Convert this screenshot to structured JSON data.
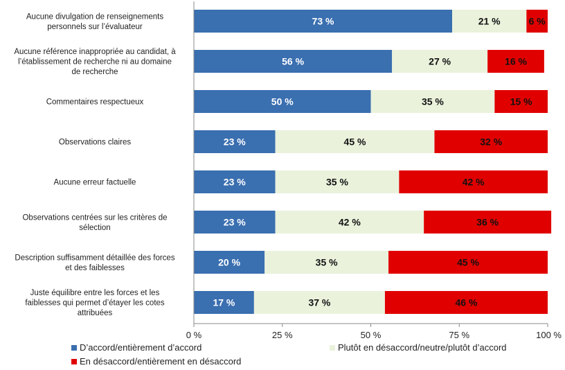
{
  "chart_data": {
    "type": "bar",
    "orientation": "horizontal",
    "stacked": true,
    "categories": [
      [
        "Aucune divulgation de renseignements",
        "personnels sur l’évaluateur"
      ],
      [
        "Aucune référence inappropriée au candidat, à",
        "l’établissement de recherche ni au domaine",
        "de recherche"
      ],
      [
        "Commentaires respectueux"
      ],
      [
        "Observations claires"
      ],
      [
        "Aucune erreur factuelle"
      ],
      [
        "Observations centrées sur les critères de",
        "sélection"
      ],
      [
        "Description suffisamment détaillée des forces",
        "et des faiblesses"
      ],
      [
        "Juste équilibre entre les forces et les",
        "faiblesses qui permet d’étayer les cotes",
        "attribuées"
      ]
    ],
    "series": [
      {
        "name": "D’accord/entièrement d’accord",
        "color": "#3a6fb0",
        "label_color": "#ffffff",
        "values": [
          73,
          56,
          50,
          23,
          23,
          23,
          20,
          17
        ]
      },
      {
        "name": "Plutôt en désaccord/neutre/plutôt d’accord",
        "color": "#eaf2dc",
        "label_color": "#111111",
        "values": [
          21,
          27,
          35,
          45,
          35,
          42,
          35,
          37
        ]
      },
      {
        "name": "En désaccord/entièrement en désaccord",
        "color": "#e00000",
        "label_color": "#111111",
        "values": [
          6,
          16,
          15,
          32,
          42,
          36,
          45,
          46
        ]
      }
    ],
    "value_suffix": " %",
    "xlim": [
      0,
      100
    ],
    "xticks": [
      0,
      25,
      50,
      75,
      100
    ],
    "xtick_labels": [
      "0 %",
      "25 %",
      "50 %",
      "75 %",
      "100 %"
    ],
    "title": "",
    "xlabel": "",
    "ylabel": "",
    "grid": false,
    "legend_position": "bottom"
  }
}
